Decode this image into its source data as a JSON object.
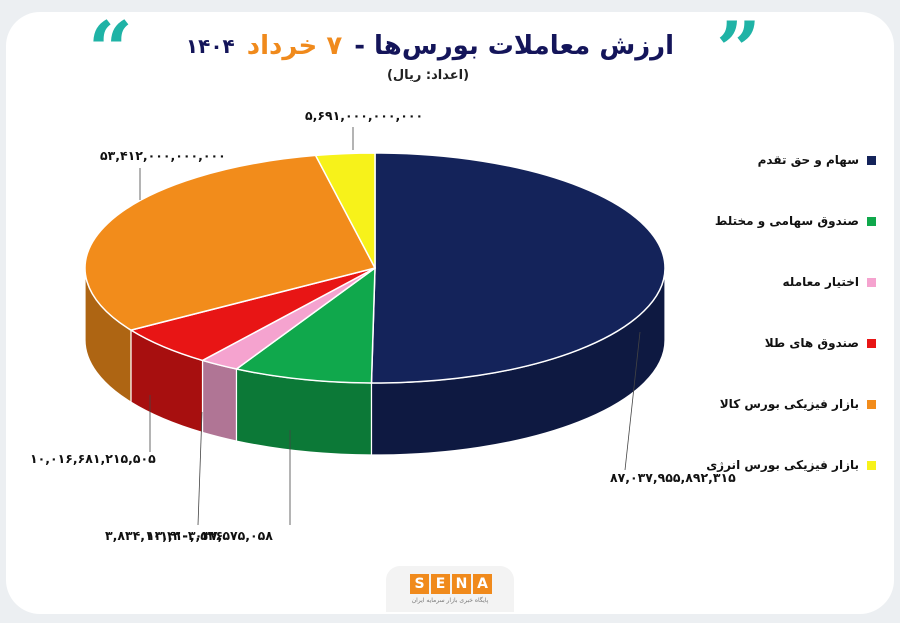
{
  "header": {
    "title_main": "ارزش معاملات بورس‌ها -",
    "title_date": "۷ خرداد",
    "title_year": "۱۴۰۴",
    "unit": "(اعداد: ریال)"
  },
  "colors": {
    "accent_quote": "#1fb3a6",
    "title": "#14155a",
    "date": "#f08a1c"
  },
  "chart_data": {
    "type": "pie",
    "title": "ارزش معاملات بورس‌ها - ۷ خرداد ۱۴۰۴",
    "unit": "ریال",
    "legend_position": "right",
    "three_d": true,
    "slices": [
      {
        "name": "سهام و حق تقدم",
        "value": 87037955892315,
        "label": "۸۷,۰۳۷,۹۵۵,۸۹۲,۳۱۵",
        "color": "#14235a"
      },
      {
        "name": "صندوق سهامی و مختلط",
        "value": 13410037575058,
        "label": "۱۳,۴۱۰,۰۳۷,۵۷۵,۰۵۸",
        "color": "#10a84c"
      },
      {
        "name": "اختیار معامله",
        "value": 3834101303536,
        "label": "۳,۸۳۴,۱۰۱,۳۰۳,۵۳۶",
        "color": "#f5a3cf"
      },
      {
        "name": "صندوق های طلا",
        "value": 10016681215505,
        "label": "۱۰,۰۱۶,۶۸۱,۲۱۵,۵۰۵",
        "color": "#e81515"
      },
      {
        "name": "بازار فیزیکی بورس کالا",
        "value": 53412000000000,
        "label": "۵۳,۴۱۲,۰۰۰,۰۰۰,۰۰۰",
        "color": "#f28c1b"
      },
      {
        "name": "بازار فیزیکی بورس انرژی",
        "value": 5691000000000,
        "label": "۵,۶۹۱,۰۰۰,۰۰۰,۰۰۰",
        "color": "#f7f21a"
      }
    ]
  },
  "logo": {
    "letters": [
      "S",
      "E",
      "N",
      "A"
    ],
    "subtitle": "پایگاه خبری بازار سرمایه ایران"
  }
}
